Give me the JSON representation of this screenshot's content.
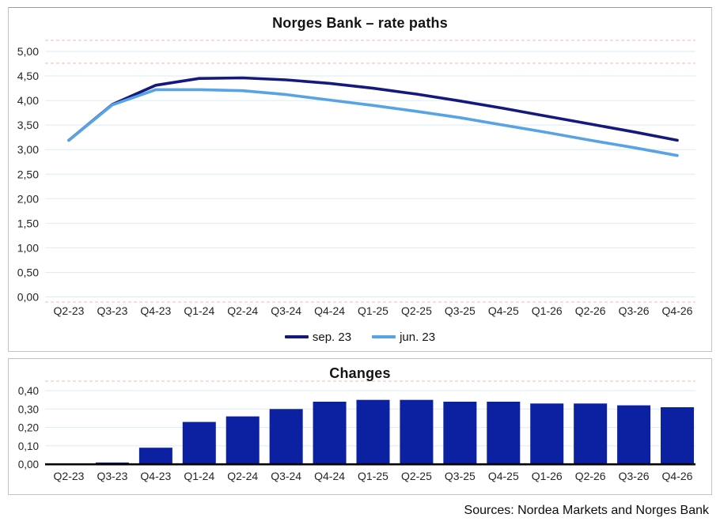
{
  "page": {
    "source_note": "Sources: Nordea Markets and Norges Bank"
  },
  "colors": {
    "grid": "#dcebf6",
    "dashed_guide": "#efc9c4",
    "axis_text": "#262626",
    "baseline": "#000000",
    "bar_fill": "#0b21a1",
    "panel_border": "#c3c3c3"
  },
  "chart_data": [
    {
      "type": "line",
      "title": "Norges Bank – rate paths",
      "categories": [
        "Q2-23",
        "Q3-23",
        "Q4-23",
        "Q1-24",
        "Q2-24",
        "Q3-24",
        "Q4-24",
        "Q1-25",
        "Q2-25",
        "Q3-25",
        "Q4-25",
        "Q1-26",
        "Q2-26",
        "Q3-26",
        "Q4-26"
      ],
      "series": [
        {
          "name": "sep. 23",
          "color": "#13197d",
          "values": [
            3.19,
            3.92,
            4.31,
            4.45,
            4.46,
            4.42,
            4.35,
            4.25,
            4.13,
            3.99,
            3.84,
            3.68,
            3.52,
            3.36,
            3.19
          ]
        },
        {
          "name": "jun. 23",
          "color": "#57a3e4",
          "values": [
            3.19,
            3.91,
            4.22,
            4.22,
            4.2,
            4.12,
            4.01,
            3.9,
            3.78,
            3.65,
            3.5,
            3.35,
            3.19,
            3.04,
            2.88
          ]
        }
      ],
      "ylim": [
        0,
        5
      ],
      "ytick_step": 0.5,
      "ytick_labels": [
        "5,00",
        "4,50",
        "4,00",
        "3,50",
        "3,00",
        "2,50",
        "2,00",
        "1,50",
        "1,00",
        "0,50",
        "0,00"
      ],
      "grid": true,
      "legend_position": "bottom-center"
    },
    {
      "type": "bar",
      "title": "Changes",
      "categories": [
        "Q2-23",
        "Q3-23",
        "Q4-23",
        "Q1-24",
        "Q2-24",
        "Q3-24",
        "Q4-24",
        "Q1-25",
        "Q2-25",
        "Q3-25",
        "Q4-25",
        "Q1-26",
        "Q2-26",
        "Q3-26",
        "Q4-26"
      ],
      "values": [
        0.002,
        0.01,
        0.09,
        0.23,
        0.26,
        0.3,
        0.34,
        0.35,
        0.35,
        0.34,
        0.34,
        0.33,
        0.33,
        0.32,
        0.31
      ],
      "ylim": [
        0,
        0.4
      ],
      "ytick_step": 0.1,
      "ytick_labels": [
        "0,40",
        "0,30",
        "0,20",
        "0,10",
        "0,00"
      ],
      "grid": true,
      "legend_position": "none"
    }
  ]
}
